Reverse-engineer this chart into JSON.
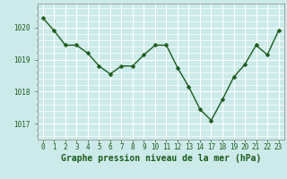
{
  "x_indices": [
    0,
    1,
    2,
    3,
    4,
    5,
    6,
    7,
    8,
    9,
    10,
    11,
    12,
    13,
    14,
    15,
    16,
    17,
    18,
    19,
    20,
    21
  ],
  "x_labels": [
    "0",
    "1",
    "2",
    "3",
    "4",
    "5",
    "6",
    "7",
    "8",
    "9",
    "10",
    "11",
    "12",
    "13",
    "14",
    "17",
    "18",
    "19",
    "20",
    "21",
    "22",
    "23"
  ],
  "y": [
    1020.3,
    1019.9,
    1019.45,
    1019.45,
    1019.2,
    1018.8,
    1018.55,
    1018.8,
    1018.8,
    1019.15,
    1019.45,
    1019.45,
    1018.75,
    1018.15,
    1017.45,
    1017.1,
    1017.75,
    1018.45,
    1018.85,
    1019.45,
    1019.15,
    1019.9
  ],
  "line_color": "#1a5c1a",
  "marker": "D",
  "marker_size": 2.5,
  "bg_color": "#cceaea",
  "grid_color": "#ffffff",
  "axis_label_color": "#1a5c1a",
  "tick_label_color": "#1a5c1a",
  "xlabel": "Graphe pression niveau de la mer (hPa)",
  "ylim": [
    1016.5,
    1020.75
  ],
  "yticks": [
    1017,
    1018,
    1019,
    1020
  ],
  "xlabel_fontsize": 7,
  "tick_fontsize": 5.5,
  "linewidth": 1.0
}
